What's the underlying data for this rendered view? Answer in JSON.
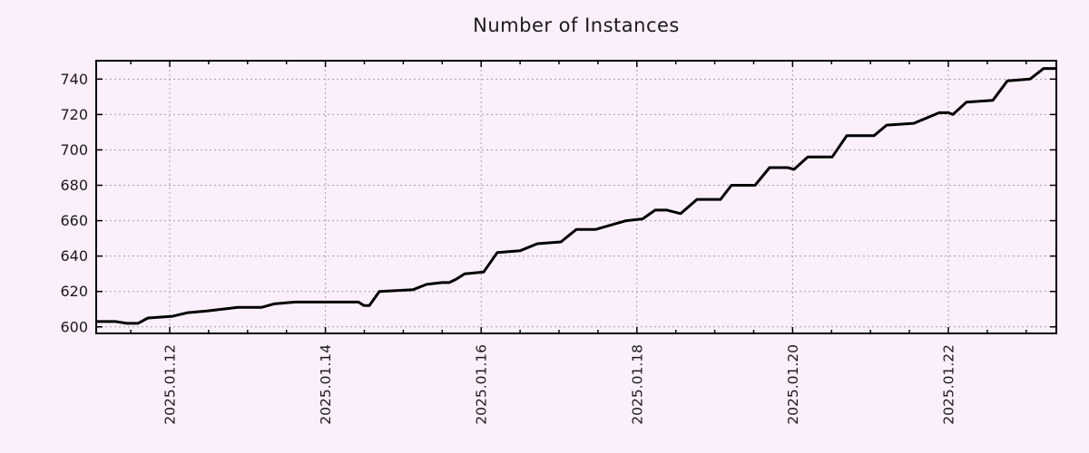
{
  "chart_data": {
    "type": "line",
    "title": "Number of Instances",
    "xlabel": "",
    "ylabel": "",
    "legend": "none",
    "grid": "major-dotted",
    "x_unit": "days_since_2025.01.11_00:00",
    "xlim_days": [
      0.056,
      12.387
    ],
    "ylim": [
      596.3,
      750.4
    ],
    "y_ticks": [
      600,
      620,
      640,
      660,
      680,
      700,
      720,
      740
    ],
    "x_major_ticks": [
      {
        "day": 1,
        "label": "2025.01.12"
      },
      {
        "day": 3,
        "label": "2025.01.14"
      },
      {
        "day": 5,
        "label": "2025.01.16"
      },
      {
        "day": 7,
        "label": "2025.01.18"
      },
      {
        "day": 9,
        "label": "2025.01.20"
      },
      {
        "day": 11,
        "label": "2025.01.22"
      }
    ],
    "minor_tick_interval_days": 0.5,
    "series": [
      {
        "name": "instances",
        "color": "#000000",
        "points": [
          [
            0.044,
            603
          ],
          [
            0.301,
            603
          ],
          [
            0.452,
            602
          ],
          [
            0.592,
            602
          ],
          [
            0.72,
            605
          ],
          [
            1.035,
            606
          ],
          [
            1.233,
            608
          ],
          [
            1.478,
            609
          ],
          [
            1.676,
            610
          ],
          [
            1.874,
            611
          ],
          [
            2.177,
            611
          ],
          [
            2.34,
            613
          ],
          [
            2.608,
            614
          ],
          [
            2.76,
            614
          ],
          [
            3.11,
            614
          ],
          [
            3.424,
            614
          ],
          [
            3.494,
            612
          ],
          [
            3.564,
            612
          ],
          [
            3.692,
            620
          ],
          [
            4.124,
            621
          ],
          [
            4.299,
            624
          ],
          [
            4.497,
            625
          ],
          [
            4.59,
            625
          ],
          [
            4.683,
            627
          ],
          [
            4.788,
            630
          ],
          [
            5.033,
            631
          ],
          [
            5.208,
            642
          ],
          [
            5.499,
            643
          ],
          [
            5.721,
            647
          ],
          [
            6.024,
            648
          ],
          [
            6.222,
            655
          ],
          [
            6.466,
            655
          ],
          [
            6.863,
            660
          ],
          [
            7.073,
            661
          ],
          [
            7.236,
            666
          ],
          [
            7.387,
            666
          ],
          [
            7.562,
            664
          ],
          [
            7.772,
            672
          ],
          [
            8.075,
            672
          ],
          [
            8.215,
            680
          ],
          [
            8.518,
            680
          ],
          [
            8.704,
            690
          ],
          [
            8.937,
            690
          ],
          [
            9.019,
            689
          ],
          [
            9.194,
            696
          ],
          [
            9.508,
            696
          ],
          [
            9.695,
            708
          ],
          [
            10.044,
            708
          ],
          [
            10.208,
            714
          ],
          [
            10.557,
            715
          ],
          [
            10.883,
            721
          ],
          [
            11.0,
            721
          ],
          [
            11.058,
            720
          ],
          [
            11.233,
            727
          ],
          [
            11.571,
            728
          ],
          [
            11.758,
            739
          ],
          [
            12.049,
            740
          ],
          [
            12.224,
            746
          ],
          [
            12.387,
            746
          ]
        ]
      }
    ]
  },
  "style": {
    "background": "#fbeffb",
    "grid_color": "#a8a0a8",
    "axis_color": "#000000",
    "text_color": "#1a1a1a",
    "line_color": "#000000"
  }
}
